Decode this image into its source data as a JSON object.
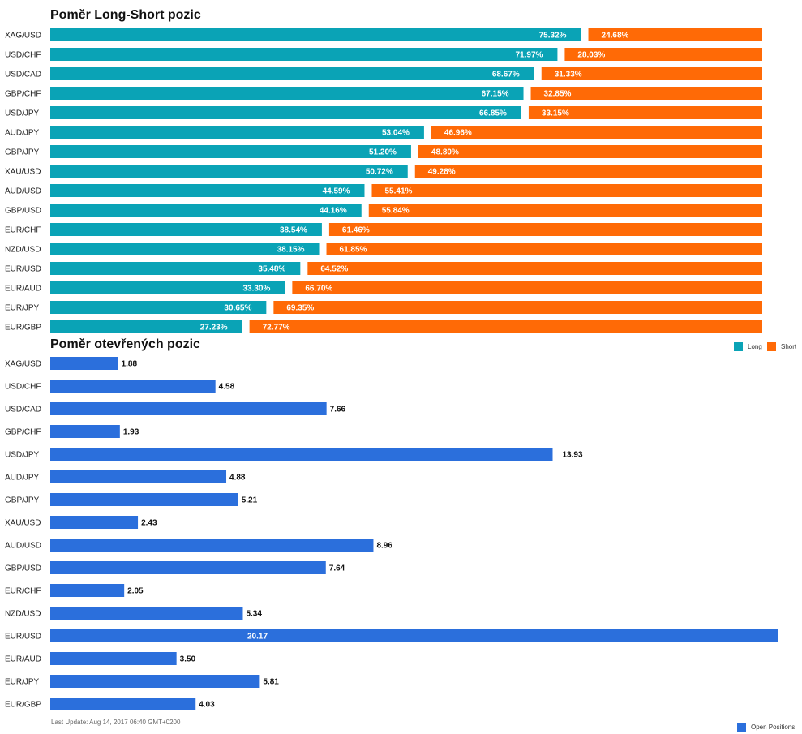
{
  "chart1": {
    "title": "Poměr Long-Short pozic",
    "legend": [
      {
        "label": "Long",
        "color": "#0aa3b6"
      },
      {
        "label": "Short",
        "color": "#ff6a06"
      }
    ]
  },
  "chart2": {
    "title": "Poměr otevřených pozic",
    "legend": [
      {
        "label": "Open Positions",
        "color": "#2b6fdc"
      }
    ]
  },
  "footer": "Last Update: Aug 14, 2017 06:40 GMT+0200",
  "chart_data": [
    {
      "type": "bar",
      "orientation": "horizontal",
      "stacked": true,
      "title": "Poměr Long-Short pozic",
      "categories": [
        "XAG/USD",
        "USD/CHF",
        "USD/CAD",
        "GBP/CHF",
        "USD/JPY",
        "AUD/JPY",
        "GBP/JPY",
        "XAU/USD",
        "AUD/USD",
        "GBP/USD",
        "EUR/CHF",
        "NZD/USD",
        "EUR/USD",
        "EUR/AUD",
        "EUR/JPY",
        "EUR/GBP"
      ],
      "series": [
        {
          "name": "Long",
          "color": "#0aa3b6",
          "values": [
            75.32,
            71.97,
            68.67,
            67.15,
            66.85,
            53.04,
            51.2,
            50.72,
            44.59,
            44.16,
            38.54,
            38.15,
            35.48,
            33.3,
            30.65,
            27.23
          ]
        },
        {
          "name": "Short",
          "color": "#ff6a06",
          "values": [
            24.68,
            28.03,
            31.33,
            32.85,
            33.15,
            46.96,
            48.8,
            49.28,
            55.41,
            55.84,
            61.46,
            61.85,
            64.52,
            66.7,
            69.35,
            72.77
          ]
        }
      ],
      "labels": {
        "long": [
          "75.32%",
          "71.97%",
          "68.67%",
          "67.15%",
          "66.85%",
          "53.04%",
          "51.20%",
          "50.72%",
          "44.59%",
          "44.16%",
          "38.54%",
          "38.15%",
          "35.48%",
          "33.30%",
          "30.65%",
          "27.23%"
        ],
        "short": [
          "24.68%",
          "28.03%",
          "31.33%",
          "32.85%",
          "33.15%",
          "46.96%",
          "48.80%",
          "49.28%",
          "55.41%",
          "55.84%",
          "61.46%",
          "61.85%",
          "64.52%",
          "66.70%",
          "69.35%",
          "72.77%"
        ]
      },
      "xlim": [
        0,
        100
      ],
      "legend_position": "right"
    },
    {
      "type": "bar",
      "orientation": "horizontal",
      "title": "Poměr otevřených pozic",
      "categories": [
        "XAG/USD",
        "USD/CHF",
        "USD/CAD",
        "GBP/CHF",
        "USD/JPY",
        "AUD/JPY",
        "GBP/JPY",
        "XAU/USD",
        "AUD/USD",
        "GBP/USD",
        "EUR/CHF",
        "NZD/USD",
        "EUR/USD",
        "EUR/AUD",
        "EUR/JPY",
        "EUR/GBP"
      ],
      "series": [
        {
          "name": "Open Positions",
          "color": "#2b6fdc",
          "values": [
            1.88,
            4.58,
            7.66,
            1.93,
            13.93,
            4.88,
            5.21,
            2.43,
            8.96,
            7.64,
            2.05,
            5.34,
            20.17,
            3.5,
            5.81,
            4.03
          ]
        }
      ],
      "value_labels": [
        "1.88",
        "4.58",
        "7.66",
        "1.93",
        "13.93",
        "4.88",
        "5.21",
        "2.43",
        "8.96",
        "7.64",
        "2.05",
        "5.34",
        "20.17",
        "3.50",
        "5.81",
        "4.03"
      ],
      "xlim": [
        0,
        20.17
      ],
      "legend_position": "bottom-right"
    }
  ]
}
